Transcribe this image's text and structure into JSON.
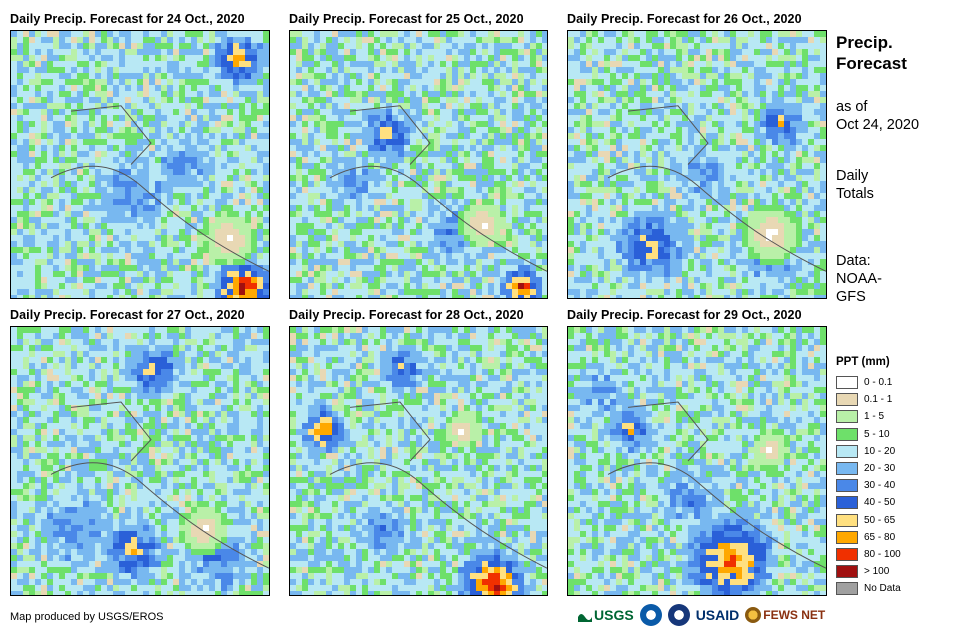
{
  "panels": [
    {
      "title": "Daily Precip. Forecast for 24 Oct., 2020"
    },
    {
      "title": "Daily Precip. Forecast for 25 Oct., 2020"
    },
    {
      "title": "Daily Precip. Forecast for 26 Oct., 2020"
    },
    {
      "title": "Daily Precip. Forecast for 27 Oct., 2020"
    },
    {
      "title": "Daily Precip. Forecast for 28 Oct., 2020"
    },
    {
      "title": "Daily Precip. Forecast for 29 Oct., 2020"
    }
  ],
  "side": {
    "title_line1": "Precip.",
    "title_line2": "Forecast",
    "as_of_line1": "as of",
    "as_of_line2": "Oct 24, 2020",
    "totals_line1": "Daily",
    "totals_line2": "Totals",
    "data_line1": "Data:",
    "data_line2": "NOAA-",
    "data_line3": "GFS"
  },
  "legend": {
    "title": "PPT (mm)",
    "items": [
      {
        "label": "0 - 0.1",
        "color": "#ffffff"
      },
      {
        "label": "0.1 - 1",
        "color": "#e8d8b4"
      },
      {
        "label": "1 - 5",
        "color": "#b9f0a8"
      },
      {
        "label": "5 - 10",
        "color": "#6ee06a"
      },
      {
        "label": "10 - 20",
        "color": "#b8e8f4"
      },
      {
        "label": "20 - 30",
        "color": "#78b8f0"
      },
      {
        "label": "30 - 40",
        "color": "#4a88e8"
      },
      {
        "label": "40 - 50",
        "color": "#2a60d8"
      },
      {
        "label": "50 - 65",
        "color": "#ffe080"
      },
      {
        "label": "65 - 80",
        "color": "#ffa800"
      },
      {
        "label": "80 - 100",
        "color": "#f03000"
      },
      {
        "label": "> 100",
        "color": "#a01010"
      },
      {
        "label": "No Data",
        "color": "#a0a0a0"
      }
    ]
  },
  "credit": "Map produced by USGS/EROS",
  "logos": {
    "usgs": "USGS",
    "usaid": "USAID",
    "fewsnet": "FEWS NET"
  }
}
